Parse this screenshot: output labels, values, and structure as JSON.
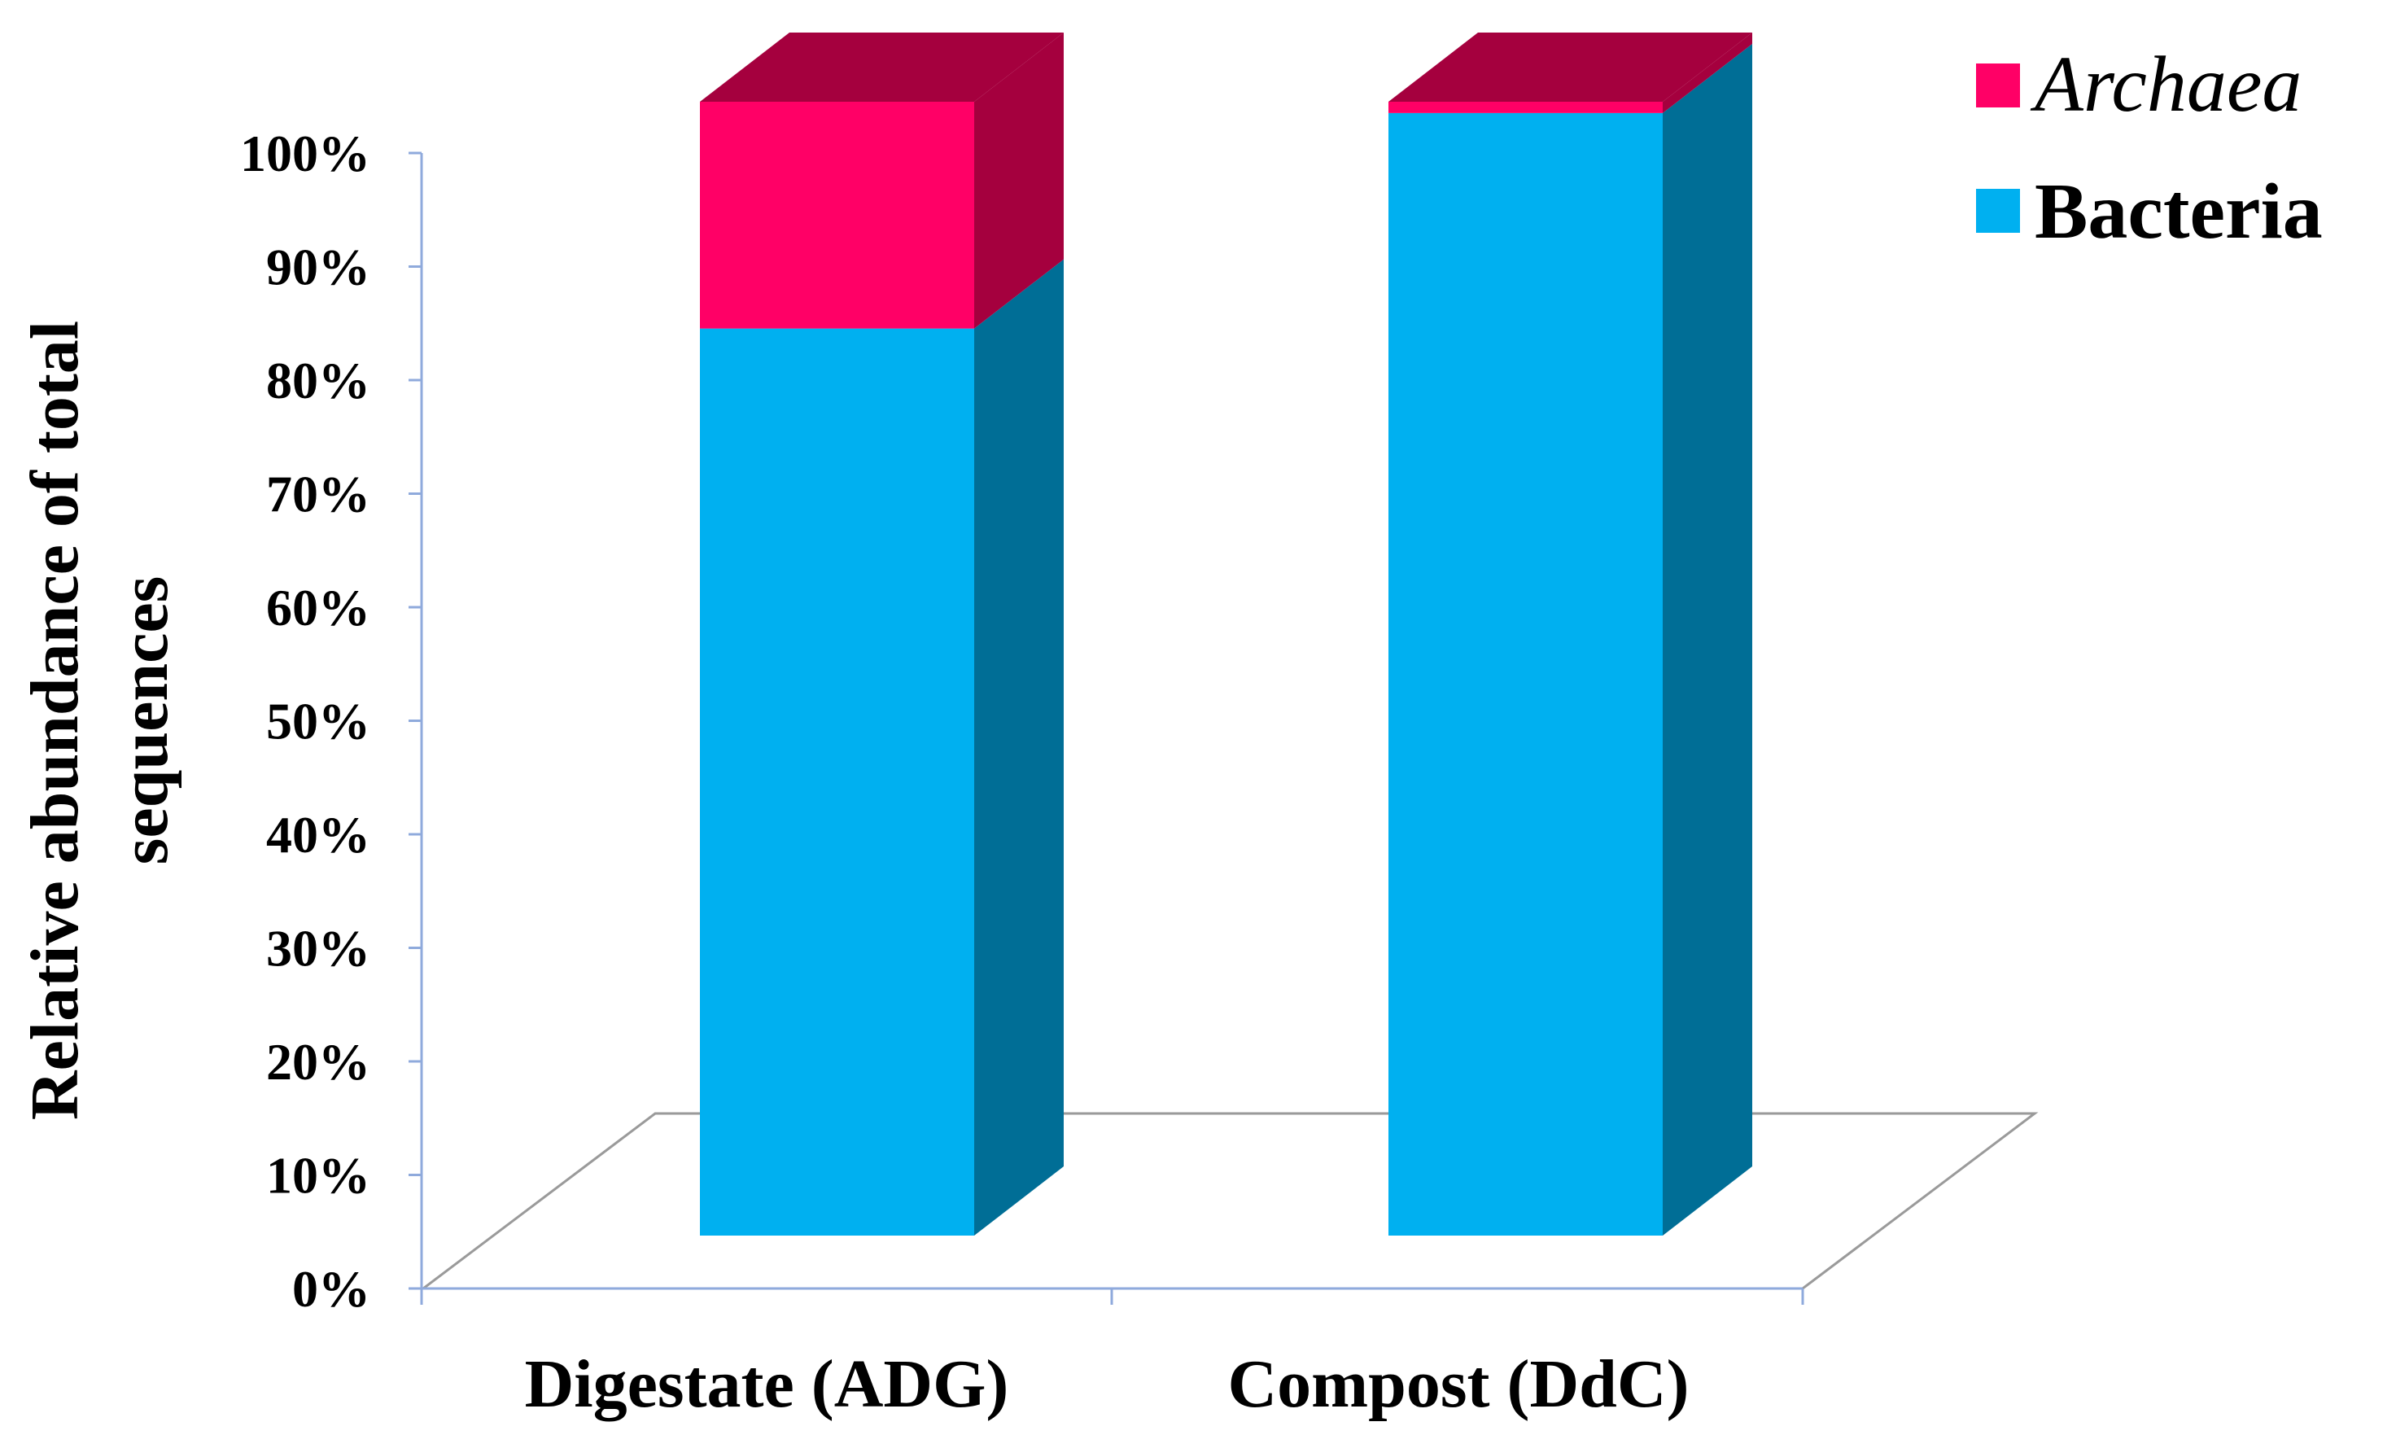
{
  "chart_data": {
    "type": "bar",
    "stacked": true,
    "style": "3d",
    "categories": [
      "Digestate (ADG)",
      "Compost (DdC)"
    ],
    "series": [
      {
        "name": "Bacteria",
        "values": [
          80,
          99
        ],
        "color": "#00B0F0",
        "color_side": "#006E96",
        "italic": false
      },
      {
        "name": "Archaea",
        "values": [
          20,
          1
        ],
        "color": "#FF0066",
        "color_side": "#A5003E",
        "italic": true
      }
    ],
    "yticks": [
      "0%",
      "10%",
      "20%",
      "30%",
      "40%",
      "50%",
      "60%",
      "70%",
      "80%",
      "90%",
      "100%"
    ],
    "ylim": [
      0,
      100
    ],
    "ylabel_lines": [
      "Relative abundance of total",
      "sequences"
    ],
    "xlabel": "",
    "title": "",
    "legend_position": "top-right",
    "grid": false
  }
}
